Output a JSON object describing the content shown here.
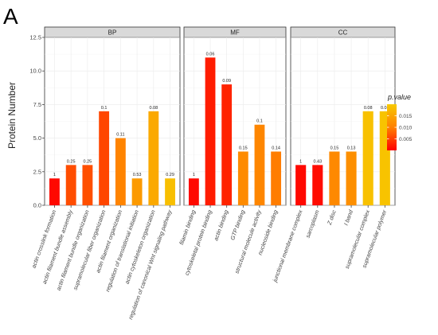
{
  "figure": {
    "panel_label": "A",
    "ylabel": "Protein Number",
    "y_ticks": [
      "0.0",
      "2.5",
      "5.0",
      "7.5",
      "10.0",
      "12.5"
    ],
    "legend": {
      "title": "p.value",
      "ticks": [
        "0.015",
        "0.010",
        "0.005"
      ]
    }
  },
  "chart_data": {
    "type": "bar",
    "ylabel": "Protein Number",
    "ylim": [
      0,
      12.5
    ],
    "grid": true,
    "legend_placement": "right",
    "color_scale": {
      "name": "p.value",
      "low": "#ff0000",
      "mid": "#ff8000",
      "high": "#f7ca00",
      "min": 0,
      "max": 0.02
    },
    "facets": [
      {
        "name": "BP",
        "bars": [
          {
            "category": "actin crosslink formation",
            "value": 2,
            "label": "1",
            "pvalue": 0.0007
          },
          {
            "category": "actin filament bundle assembly",
            "value": 3,
            "label": "0.25",
            "pvalue": 0.006
          },
          {
            "category": "actin filament bundle organization",
            "value": 3,
            "label": "0.25",
            "pvalue": 0.0062
          },
          {
            "category": "supramolecular fiber organization",
            "value": 7,
            "label": "0.1",
            "pvalue": 0.0055
          },
          {
            "category": "actin filament organization",
            "value": 5,
            "label": "0.11",
            "pvalue": 0.0105
          },
          {
            "category": "regulation of translational initiation",
            "value": 2,
            "label": "0.53",
            "pvalue": 0.0135
          },
          {
            "category": "actin cytoskeleton organization",
            "value": 7,
            "label": "0.08",
            "pvalue": 0.0155
          },
          {
            "category": "regulation of canonical Wnt signaling pathway",
            "value": 2,
            "label": "0.29",
            "pvalue": 0.0185
          }
        ]
      },
      {
        "name": "MF",
        "bars": [
          {
            "category": "filamin binding",
            "value": 2,
            "label": "1",
            "pvalue": 0.0008
          },
          {
            "category": "cytoskeletal protein binding",
            "value": 11,
            "label": "0.06",
            "pvalue": 0.0022
          },
          {
            "category": "actin binding",
            "value": 9,
            "label": "0.09",
            "pvalue": 0.0028
          },
          {
            "category": "GTP binding",
            "value": 4,
            "label": "0.15",
            "pvalue": 0.0115
          },
          {
            "category": "structural molecule activity",
            "value": 6,
            "label": "0.1",
            "pvalue": 0.0108
          },
          {
            "category": "nucleoside binding",
            "value": 4,
            "label": "0.14",
            "pvalue": 0.0098
          }
        ]
      },
      {
        "name": "CC",
        "bars": [
          {
            "category": "junctional membrane complex",
            "value": 3,
            "label": "1",
            "pvalue": 0.0007
          },
          {
            "category": "sarcoplasm",
            "value": 3,
            "label": "0.43",
            "pvalue": 0.0009
          },
          {
            "category": "Z disc",
            "value": 4,
            "label": "0.15",
            "pvalue": 0.0112
          },
          {
            "category": "I band",
            "value": 4,
            "label": "0.13",
            "pvalue": 0.012
          },
          {
            "category": "supramolecular complex",
            "value": 7,
            "label": "0.08",
            "pvalue": 0.0188
          },
          {
            "category": "supramolecular polymer",
            "value": 7,
            "label": "0.08",
            "pvalue": 0.019
          }
        ]
      }
    ]
  }
}
